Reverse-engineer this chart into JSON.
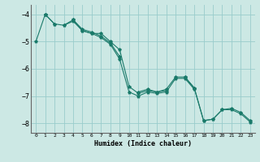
{
  "title": "",
  "xlabel": "Humidex (Indice chaleur)",
  "background_color": "#cce8e4",
  "grid_color": "#99cccc",
  "line_color": "#1a7a6a",
  "xlim": [
    -0.5,
    23.5
  ],
  "ylim": [
    -8.35,
    -3.65
  ],
  "yticks": [
    -8,
    -7,
    -6,
    -5,
    -4
  ],
  "xticks": [
    0,
    1,
    2,
    3,
    4,
    5,
    6,
    7,
    8,
    9,
    10,
    11,
    12,
    13,
    14,
    15,
    16,
    17,
    18,
    19,
    20,
    21,
    22,
    23
  ],
  "series1": [
    null,
    -4.0,
    null,
    -4.4,
    -4.2,
    -4.6,
    -4.7,
    -4.7,
    -5.0,
    -5.3,
    -6.65,
    -6.9,
    -6.8,
    -6.85,
    -6.8,
    null,
    -6.3,
    -6.7,
    -7.9,
    -7.85,
    -7.5,
    -7.45,
    -7.6,
    -7.9
  ],
  "series2": [
    null,
    -4.0,
    -4.35,
    null,
    -4.2,
    -4.55,
    -4.65,
    -4.8,
    -5.05,
    -5.55,
    null,
    -6.85,
    -6.75,
    -6.85,
    -6.75,
    -6.3,
    -6.3,
    -6.7,
    -7.9,
    -7.85,
    -7.5,
    -7.5,
    -7.65,
    -7.95
  ],
  "series3": [
    -5.0,
    -4.0,
    -4.35,
    -4.4,
    -4.25,
    -4.6,
    -4.7,
    -4.85,
    -5.1,
    -5.65,
    -6.85,
    -7.0,
    -6.85,
    -6.9,
    -6.85,
    -6.35,
    -6.35,
    -6.75,
    null,
    null,
    null,
    null,
    null,
    null
  ]
}
